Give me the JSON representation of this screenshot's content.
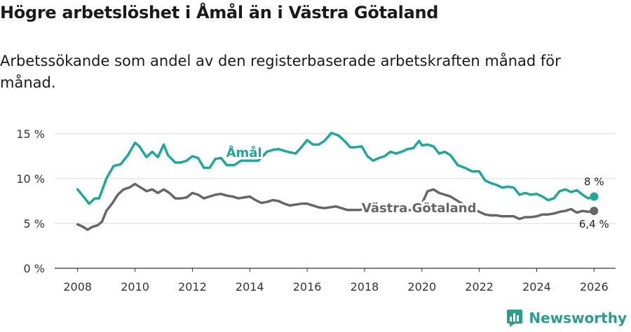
{
  "page": {
    "title": "Högre arbetslöshet i Åmål än i Västra Götaland",
    "subtitle": "Arbetssökande som andel av den registerbaserade arbetskraften månad för månad.",
    "brand": "Newsworthy"
  },
  "colors": {
    "amal": "#1fa797",
    "vg": "#666666",
    "grid": "#d9d9d9",
    "axis": "#333333",
    "brand": "#2b9c8e"
  },
  "chart_data": {
    "type": "line",
    "title": "Högre arbetslöshet i Åmål än i Västra Götaland",
    "xlabel": "",
    "ylabel": "",
    "xlim": [
      2007.2,
      2026.75
    ],
    "ylim": [
      0,
      15
    ],
    "yticks": [
      0,
      5,
      10,
      15
    ],
    "ytick_labels": [
      "0 %",
      "5 %",
      "10 %",
      "15 %"
    ],
    "xticks": [
      2008,
      2010,
      2012,
      2014,
      2016,
      2018,
      2020,
      2022,
      2024,
      2026
    ],
    "xtick_labels": [
      "2008",
      "2010",
      "2012",
      "2014",
      "2016",
      "2018",
      "2020",
      "2022",
      "2024",
      "2026"
    ],
    "grid": true,
    "series": [
      {
        "name": "Åmål",
        "label": "Åmål",
        "end_label": "8 %",
        "x": [
          2008.0,
          2008.25,
          2008.4,
          2008.6,
          2008.75,
          2009.0,
          2009.25,
          2009.5,
          2009.75,
          2010.0,
          2010.15,
          2010.4,
          2010.6,
          2010.8,
          2011.0,
          2011.15,
          2011.4,
          2011.6,
          2011.8,
          2012.0,
          2012.2,
          2012.4,
          2012.6,
          2012.8,
          2013.0,
          2013.2,
          2013.45,
          2013.7,
          2014.0,
          2014.3,
          2014.6,
          2014.8,
          2015.0,
          2015.3,
          2015.6,
          2015.8,
          2016.0,
          2016.2,
          2016.4,
          2016.6,
          2016.85,
          2017.1,
          2017.3,
          2017.5,
          2017.7,
          2017.9,
          2018.1,
          2018.3,
          2018.5,
          2018.7,
          2018.9,
          2019.1,
          2019.3,
          2019.5,
          2019.7,
          2019.9,
          2020.0,
          2020.2,
          2020.4,
          2020.6,
          2020.8,
          2021.0,
          2021.25,
          2021.5,
          2021.75,
          2022.0,
          2022.2,
          2022.4,
          2022.6,
          2022.8,
          2023.0,
          2023.2,
          2023.4,
          2023.6,
          2023.8,
          2024.0,
          2024.2,
          2024.4,
          2024.6,
          2024.8,
          2025.0,
          2025.2,
          2025.4,
          2025.6,
          2025.8,
          2026.0
        ],
        "y": [
          8.8,
          7.8,
          7.2,
          7.8,
          7.8,
          10.0,
          11.4,
          11.6,
          12.6,
          14.0,
          13.6,
          12.4,
          13.0,
          12.4,
          13.8,
          12.6,
          11.8,
          11.8,
          12.0,
          12.5,
          12.3,
          11.2,
          11.2,
          12.2,
          12.3,
          11.5,
          11.5,
          12.0,
          12.0,
          12.0,
          13.0,
          13.2,
          13.3,
          13.0,
          12.8,
          13.5,
          14.3,
          13.8,
          13.8,
          14.2,
          15.1,
          14.8,
          14.2,
          13.5,
          13.5,
          13.6,
          12.5,
          12.0,
          12.3,
          12.5,
          13.0,
          12.8,
          13.0,
          13.3,
          13.4,
          14.2,
          13.7,
          13.8,
          13.6,
          12.8,
          13.0,
          12.6,
          11.5,
          11.2,
          10.8,
          10.8,
          9.8,
          9.5,
          9.3,
          9.0,
          9.1,
          9.0,
          8.2,
          8.4,
          8.2,
          8.3,
          8.0,
          7.6,
          7.8,
          8.6,
          8.8,
          8.5,
          8.7,
          8.2,
          7.8,
          8.0
        ]
      },
      {
        "name": "Västra Götaland",
        "label": "Västra Götaland",
        "end_label": "6,4 %",
        "x": [
          2008.0,
          2008.2,
          2008.35,
          2008.5,
          2008.7,
          2008.85,
          2009.0,
          2009.2,
          2009.4,
          2009.6,
          2009.8,
          2010.0,
          2010.2,
          2010.4,
          2010.6,
          2010.8,
          2011.0,
          2011.2,
          2011.4,
          2011.6,
          2011.8,
          2012.0,
          2012.2,
          2012.4,
          2012.6,
          2012.8,
          2013.0,
          2013.2,
          2013.4,
          2013.6,
          2013.8,
          2014.0,
          2014.2,
          2014.4,
          2014.6,
          2014.8,
          2015.0,
          2015.2,
          2015.4,
          2015.6,
          2015.8,
          2016.0,
          2016.2,
          2016.4,
          2016.6,
          2016.8,
          2017.0,
          2017.2,
          2017.4,
          2017.6,
          2017.8,
          2018.0,
          2018.2,
          2018.4,
          2018.6,
          2018.8,
          2019.0,
          2019.2,
          2019.4,
          2019.6,
          2019.8,
          2020.0,
          2020.2,
          2020.4,
          2020.6,
          2020.8,
          2021.0,
          2021.2,
          2021.4,
          2021.6,
          2021.8,
          2022.0,
          2022.2,
          2022.4,
          2022.6,
          2022.8,
          2023.0,
          2023.2,
          2023.4,
          2023.6,
          2023.8,
          2024.0,
          2024.2,
          2024.4,
          2024.6,
          2024.8,
          2025.0,
          2025.2,
          2025.4,
          2025.6,
          2025.8,
          2026.0
        ],
        "y": [
          4.9,
          4.6,
          4.3,
          4.6,
          4.8,
          5.2,
          6.4,
          7.2,
          8.2,
          8.8,
          9.0,
          9.4,
          9.0,
          8.6,
          8.8,
          8.4,
          8.8,
          8.4,
          7.8,
          7.8,
          7.9,
          8.4,
          8.2,
          7.8,
          8.0,
          8.2,
          8.3,
          8.1,
          8.0,
          7.8,
          7.9,
          8.0,
          7.6,
          7.3,
          7.4,
          7.6,
          7.5,
          7.2,
          7.0,
          7.1,
          7.2,
          7.2,
          7.0,
          6.8,
          6.7,
          6.8,
          6.9,
          6.7,
          6.5,
          6.5,
          6.5,
          6.6,
          6.6,
          6.6,
          6.6,
          6.5,
          6.4,
          6.4,
          6.4,
          6.5,
          6.8,
          7.2,
          8.6,
          8.8,
          8.4,
          8.2,
          8.0,
          7.6,
          7.2,
          6.8,
          6.6,
          6.3,
          6.0,
          5.9,
          5.9,
          5.8,
          5.8,
          5.8,
          5.5,
          5.7,
          5.7,
          5.8,
          6.0,
          6.0,
          6.1,
          6.3,
          6.4,
          6.6,
          6.2,
          6.4,
          6.3,
          6.4
        ]
      }
    ],
    "annotations": [
      {
        "text": "Åmål",
        "series": "Åmål",
        "x": 2013.8,
        "y": 12.9
      },
      {
        "text": "Västra Götaland",
        "series": "Västra Götaland",
        "x": 2019.9,
        "y": 6.7
      }
    ]
  }
}
